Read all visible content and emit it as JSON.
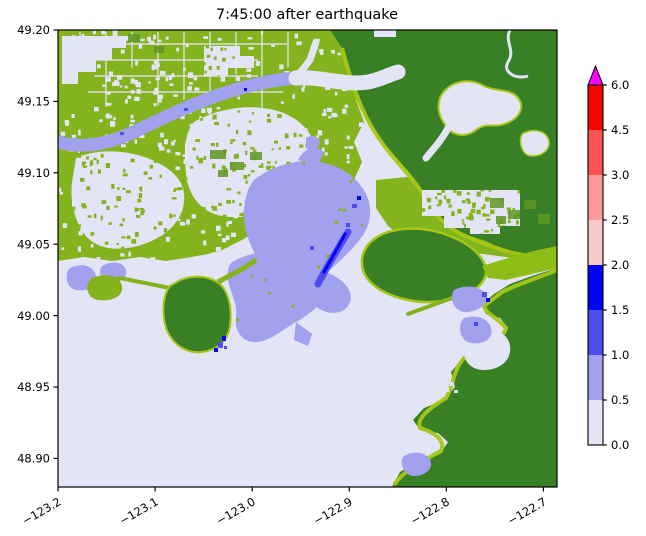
{
  "title": "7:45:00 after earthquake",
  "axes": {
    "x": {
      "tick_labels": [
        "−123.2",
        "−123.1",
        "−123.0",
        "−122.9",
        "−122.8",
        "−122.7"
      ]
    },
    "y": {
      "tick_labels": [
        "49.20",
        "49.15",
        "49.10",
        "49.05",
        "49.00",
        "48.95",
        "48.90"
      ]
    }
  },
  "colorbar": {
    "tick_labels_bottom_to_top": [
      "0.0",
      "0.5",
      "1.0",
      "1.5",
      "2.0",
      "2.5",
      "3.0",
      "4.5",
      "6.0"
    ],
    "segment_colors_bottom_to_top": [
      "#e4e4f7",
      "#a1a1ee",
      "#4c4cf0",
      "#0404f5",
      "#fbc9c9",
      "#fb9a9a",
      "#fb5353",
      "#fb0100"
    ],
    "over_color": "#f904fb",
    "extend": "max"
  },
  "palette": {
    "sea": "#e4e4f7",
    "flood1": "#a1a1ee",
    "flood2": "#4c4cf0",
    "flood3": "#0404f5",
    "farm": "#83b41e",
    "farm_dark": "#5f9722",
    "hill": "#397f26",
    "fringe": "#a6c715",
    "bright_band": "#8cbe17",
    "spine": "#000000"
  },
  "chart_data": {
    "type": "heatmap",
    "title": "7:45:00 after earthquake",
    "x_ticks": [
      -123.2,
      -123.1,
      -123.0,
      -122.9,
      -122.8,
      -122.7
    ],
    "y_ticks": [
      49.2,
      49.15,
      49.1,
      49.05,
      49.0,
      48.95,
      48.9
    ],
    "xlim": [
      -123.2,
      -122.686
    ],
    "ylim": [
      48.88,
      49.2
    ],
    "grid": false,
    "legend_position": "right vertical colorbar",
    "colorscale": {
      "boundaries": [
        0.0,
        0.5,
        1.0,
        1.5,
        2.0,
        2.5,
        3.0,
        4.5,
        6.0
      ],
      "colors_bottom_to_top": [
        "#e4e4f7",
        "#a1a1ee",
        "#4c4cf0",
        "#0404f5",
        "#fbc9c9",
        "#fb9a9a",
        "#fb5353",
        "#fb0100"
      ],
      "over_color": "#f904fb",
      "extend": "max"
    },
    "regions": [
      {
        "name": "open water / lowest band (large bay lower-left, inlets)",
        "value_range": [
          0.0,
          0.5
        ]
      },
      {
        "name": "river channel crossing upper-left land toward upper-right",
        "value_range": [
          0.5,
          1.0
        ]
      },
      {
        "name": "central coastal flood plume around 49.05N,-122.95W",
        "value_range": [
          0.5,
          1.5
        ]
      },
      {
        "name": "deep flood streak in plume core and at peninsula tip",
        "value_range": [
          1.5,
          2.0
        ]
      },
      {
        "name": "flooded shore pockets near -122.78W,49.02N",
        "value_range": [
          0.5,
          1.5
        ]
      },
      {
        "name": "vegetated uplands (dark green) and farmland (light green): dry land",
        "value_range": null
      }
    ]
  }
}
